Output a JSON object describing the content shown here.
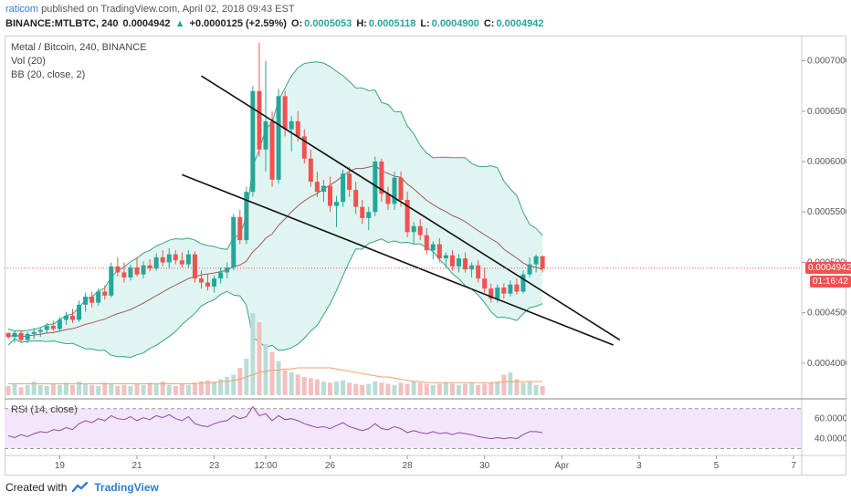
{
  "header": {
    "user": "raticom",
    "published_text": "published on TradingView.com, April 02, 2018 09:43 EST"
  },
  "symbol_bar": {
    "symbol": "BINANCE:MTLBTC, 240",
    "last": "0.0004942",
    "change_arrow": "▲",
    "change": "+0.0000125 (+2.59%)",
    "o_label": "O:",
    "o": "0.0005053",
    "h_label": "H:",
    "h": "0.0005118",
    "l_label": "L:",
    "l": "0.0004900",
    "c_label": "C:",
    "c": "0.0004942"
  },
  "legend": {
    "title": "Metal / Bitcoin, 240, BINANCE",
    "vol": "Vol (20)",
    "bb": "BB (20, close, 2)",
    "rsi": "RSI (14, close)"
  },
  "price_badges": {
    "last": "0.0004942",
    "countdown": "01:16:42"
  },
  "footer": {
    "created_with": "Created with",
    "brand": "TradingView"
  },
  "colors": {
    "up": "#26a69a",
    "down": "#ef5350",
    "bb_fill": "#e0f5f1",
    "bb_band": "#3aa382",
    "bb_basis": "#a05a5a",
    "rsi_fill": "#f3e6fb",
    "rsi_line": "#8e4aa8",
    "trendline": "#111111",
    "vol_up": "#b9ddd6",
    "vol_down": "#f3c0bf",
    "vol_ma": "#f0a468"
  },
  "chart_data": {
    "type": "candlestick",
    "price_axis": {
      "ylim": [
        0.00037,
        0.000725
      ],
      "ticks": [
        "0.0007000",
        "0.0006500",
        "0.0006000",
        "0.0005500",
        "0.0005000",
        "0.0004500",
        "0.0004000"
      ],
      "tick_values": [
        0.0007,
        0.00065,
        0.0006,
        0.00055,
        0.0005,
        0.00045,
        0.0004
      ]
    },
    "x_axis": {
      "labels": [
        "19",
        "21",
        "23",
        "12:00",
        "26",
        "28",
        "30",
        "Apr",
        "3",
        "5",
        "7"
      ],
      "label_index": [
        8,
        20,
        32,
        40,
        50,
        62,
        74,
        86,
        98,
        110,
        122
      ]
    },
    "candles": [
      [
        0.00043,
        0.00043,
        0.000424,
        0.000426
      ],
      [
        0.000426,
        0.000432,
        0.00042,
        0.00043
      ],
      [
        0.00043,
        0.000433,
        0.000421,
        0.000423
      ],
      [
        0.000423,
        0.000431,
        0.00042,
        0.000429
      ],
      [
        0.000429,
        0.000435,
        0.000424,
        0.000431
      ],
      [
        0.000431,
        0.000436,
        0.000426,
        0.000433
      ],
      [
        0.000433,
        0.00044,
        0.00043,
        0.000437
      ],
      [
        0.000437,
        0.000442,
        0.000432,
        0.000434
      ],
      [
        0.000434,
        0.000446,
        0.000431,
        0.000443
      ],
      [
        0.000443,
        0.000451,
        0.000438,
        0.000447
      ],
      [
        0.000447,
        0.000454,
        0.00044,
        0.000443
      ],
      [
        0.000443,
        0.000462,
        0.000441,
        0.000458
      ],
      [
        0.000458,
        0.00047,
        0.000451,
        0.000466
      ],
      [
        0.000466,
        0.000471,
        0.000455,
        0.00046
      ],
      [
        0.00046,
        0.000474,
        0.000457,
        0.000471
      ],
      [
        0.000471,
        0.000477,
        0.000463,
        0.000467
      ],
      [
        0.000467,
        0.0005,
        0.000465,
        0.000496
      ],
      [
        0.000496,
        0.000505,
        0.000486,
        0.00049
      ],
      [
        0.00049,
        0.0005,
        0.00048,
        0.000485
      ],
      [
        0.000485,
        0.000498,
        0.000482,
        0.000495
      ],
      [
        0.000495,
        0.000505,
        0.000486,
        0.000488
      ],
      [
        0.000488,
        0.000501,
        0.000484,
        0.000497
      ],
      [
        0.000497,
        0.000503,
        0.000491,
        0.000494
      ],
      [
        0.000494,
        0.000509,
        0.000492,
        0.000505
      ],
      [
        0.000505,
        0.000512,
        0.000496,
        0.0005
      ],
      [
        0.0005,
        0.000514,
        0.000494,
        0.000508
      ],
      [
        0.000508,
        0.000512,
        0.000498,
        0.000502
      ],
      [
        0.000502,
        0.00051,
        0.000495,
        0.000498
      ],
      [
        0.000498,
        0.000512,
        0.000494,
        0.000508
      ],
      [
        0.000508,
        0.000511,
        0.00048,
        0.000484
      ],
      [
        0.000484,
        0.000492,
        0.000474,
        0.00048
      ],
      [
        0.00048,
        0.000488,
        0.000472,
        0.000476
      ],
      [
        0.000476,
        0.000487,
        0.00047,
        0.000484
      ],
      [
        0.000484,
        0.000495,
        0.000479,
        0.00049
      ],
      [
        0.00049,
        0.0005,
        0.000484,
        0.000495
      ],
      [
        0.000495,
        0.000548,
        0.000492,
        0.000545
      ],
      [
        0.000545,
        0.000552,
        0.000518,
        0.000522
      ],
      [
        0.000522,
        0.000575,
        0.000518,
        0.00057
      ],
      [
        0.00057,
        0.000675,
        0.000565,
        0.00067
      ],
      [
        0.00067,
        0.000718,
        0.000605,
        0.000612
      ],
      [
        0.000612,
        0.0007,
        0.00059,
        0.00064
      ],
      [
        0.00064,
        0.00065,
        0.000575,
        0.000582
      ],
      [
        0.000582,
        0.000672,
        0.000578,
        0.000665
      ],
      [
        0.000665,
        0.00067,
        0.000625,
        0.000632
      ],
      [
        0.000632,
        0.000645,
        0.00061,
        0.00064
      ],
      [
        0.00064,
        0.00065,
        0.00062,
        0.000625
      ],
      [
        0.000625,
        0.000632,
        0.000598,
        0.000603
      ],
      [
        0.000603,
        0.000612,
        0.000575,
        0.00058
      ],
      [
        0.00058,
        0.00059,
        0.000565,
        0.00057
      ],
      [
        0.00057,
        0.000582,
        0.00056,
        0.000576
      ],
      [
        0.000576,
        0.000585,
        0.00055,
        0.000556
      ],
      [
        0.000556,
        0.000566,
        0.000535,
        0.00056
      ],
      [
        0.00056,
        0.000592,
        0.000555,
        0.000588
      ],
      [
        0.000588,
        0.000595,
        0.000565,
        0.000572
      ],
      [
        0.000572,
        0.00058,
        0.000548,
        0.000555
      ],
      [
        0.000555,
        0.000562,
        0.000538,
        0.000544
      ],
      [
        0.000544,
        0.000555,
        0.000532,
        0.00055
      ],
      [
        0.00055,
        0.000605,
        0.000546,
        0.0006
      ],
      [
        0.0006,
        0.000603,
        0.00056,
        0.000568
      ],
      [
        0.000568,
        0.000575,
        0.000552,
        0.000558
      ],
      [
        0.000558,
        0.00059,
        0.000552,
        0.000584
      ],
      [
        0.000584,
        0.00059,
        0.000555,
        0.000562
      ],
      [
        0.000562,
        0.00057,
        0.000525,
        0.00053
      ],
      [
        0.00053,
        0.00054,
        0.000518,
        0.000536
      ],
      [
        0.000536,
        0.000543,
        0.000522,
        0.000527
      ],
      [
        0.000527,
        0.000534,
        0.000508,
        0.000512
      ],
      [
        0.000512,
        0.000521,
        0.000503,
        0.000518
      ],
      [
        0.000518,
        0.000524,
        0.0005,
        0.000504
      ],
      [
        0.000504,
        0.00051,
        0.000494,
        0.000507
      ],
      [
        0.000507,
        0.000512,
        0.000492,
        0.000496
      ],
      [
        0.000496,
        0.000508,
        0.00049,
        0.000504
      ],
      [
        0.000504,
        0.00051,
        0.00049,
        0.000493
      ],
      [
        0.000493,
        0.0005,
        0.000485,
        0.000497
      ],
      [
        0.000497,
        0.000502,
        0.00048,
        0.000484
      ],
      [
        0.000484,
        0.000495,
        0.00047,
        0.000474
      ],
      [
        0.000474,
        0.000479,
        0.00046,
        0.000464
      ],
      [
        0.000464,
        0.000478,
        0.00046,
        0.000475
      ],
      [
        0.000475,
        0.000479,
        0.000464,
        0.000469
      ],
      [
        0.000469,
        0.000482,
        0.000466,
        0.000478
      ],
      [
        0.000478,
        0.000484,
        0.000468,
        0.000471
      ],
      [
        0.000471,
        0.000492,
        0.000469,
        0.000488
      ],
      [
        0.000488,
        0.000505,
        0.000485,
        0.000498
      ],
      [
        0.000498,
        0.000508,
        0.00049,
        0.000506
      ],
      [
        0.000506,
        0.000507,
        0.00049,
        0.000494
      ]
    ],
    "volume": [
      8,
      10,
      7,
      9,
      12,
      9,
      8,
      10,
      9,
      11,
      9,
      12,
      10,
      9,
      8,
      11,
      10,
      8,
      9,
      8,
      10,
      9,
      11,
      10,
      12,
      9,
      8,
      10,
      9,
      11,
      12,
      13,
      12,
      14,
      16,
      18,
      24,
      32,
      72,
      64,
      45,
      38,
      30,
      22,
      20,
      18,
      16,
      15,
      14,
      12,
      11,
      12,
      13,
      11,
      10,
      9,
      10,
      12,
      11,
      10,
      9,
      11,
      10,
      12,
      11,
      10,
      9,
      10,
      11,
      10,
      9,
      10,
      11,
      9,
      10,
      11,
      12,
      18,
      20,
      14,
      11,
      12,
      9,
      8
    ],
    "volume_ma": [
      10,
      10,
      10,
      10,
      10,
      10,
      10,
      10,
      10,
      10,
      10,
      10,
      10,
      10,
      10,
      10,
      10,
      10,
      10,
      10,
      10,
      10,
      10,
      10,
      10,
      10,
      10,
      10,
      10,
      10,
      11,
      11,
      11,
      12,
      12,
      13,
      14,
      16,
      18,
      20,
      21,
      22,
      22,
      23,
      23,
      24,
      24,
      24,
      24,
      24,
      24,
      23,
      22,
      21,
      20,
      19,
      18,
      17,
      16,
      16,
      15,
      14,
      13,
      12,
      12,
      11,
      11,
      11,
      11,
      11,
      11,
      11,
      11,
      11,
      11,
      11,
      11,
      12,
      12,
      12,
      12,
      12,
      12,
      12
    ],
    "rsi": [
      43,
      41,
      44,
      42,
      45,
      47,
      46,
      49,
      48,
      51,
      49,
      55,
      58,
      56,
      60,
      58,
      63,
      60,
      59,
      62,
      58,
      61,
      59,
      63,
      61,
      64,
      60,
      58,
      62,
      55,
      53,
      52,
      55,
      57,
      58,
      63,
      60,
      62,
      72,
      63,
      65,
      58,
      63,
      59,
      60,
      58,
      55,
      53,
      51,
      52,
      50,
      53,
      56,
      52,
      50,
      48,
      50,
      55,
      50,
      49,
      52,
      50,
      46,
      48,
      46,
      45,
      47,
      45,
      46,
      44,
      46,
      45,
      44,
      42,
      41,
      40,
      41,
      40,
      41,
      40,
      44,
      47,
      47,
      46
    ],
    "rsi_axis": {
      "ticks": [
        "60.0000",
        "40.0000"
      ],
      "tick_values": [
        60,
        40
      ],
      "bands": [
        70,
        30
      ],
      "ylim": [
        25,
        78
      ]
    },
    "trendlines": [
      {
        "from": [
          30,
          0.000685
        ],
        "to": [
          95,
          0.000423
        ]
      },
      {
        "from": [
          27,
          0.000587
        ],
        "to": [
          94,
          0.000418
        ]
      }
    ],
    "last_price": 0.0004942
  }
}
